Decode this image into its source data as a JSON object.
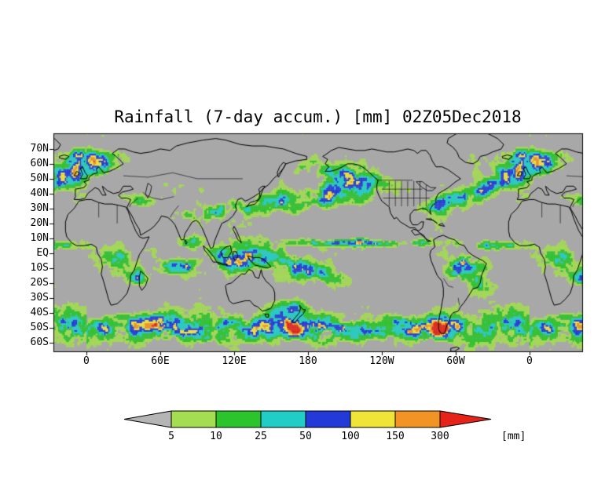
{
  "chart_data": {
    "type": "heatmap",
    "title": "Rainfall (7-day accum.) [mm] 02Z05Dec2018",
    "variable": "7-day accumulated rainfall",
    "valid_time": "02Z05Dec2018",
    "projection": "latlon-global-wrapped",
    "lon_range": [
      -26.8,
      402.8
    ],
    "lat_range": [
      -66,
      80.5
    ],
    "x_ticks": [
      {
        "lon": 0,
        "label": "0"
      },
      {
        "lon": 60,
        "label": "60E"
      },
      {
        "lon": 120,
        "label": "120E"
      },
      {
        "lon": 180,
        "label": "180"
      },
      {
        "lon": 240,
        "label": "120W"
      },
      {
        "lon": 300,
        "label": "60W"
      },
      {
        "lon": 360,
        "label": "0"
      }
    ],
    "y_ticks": [
      {
        "lat": 70,
        "label": "70N"
      },
      {
        "lat": 60,
        "label": "60N"
      },
      {
        "lat": 50,
        "label": "50N"
      },
      {
        "lat": 40,
        "label": "40N"
      },
      {
        "lat": 30,
        "label": "30N"
      },
      {
        "lat": 20,
        "label": "20N"
      },
      {
        "lat": 10,
        "label": "10N"
      },
      {
        "lat": 0,
        "label": "EQ"
      },
      {
        "lat": -10,
        "label": "10S"
      },
      {
        "lat": -20,
        "label": "20S"
      },
      {
        "lat": -30,
        "label": "30S"
      },
      {
        "lat": -40,
        "label": "40S"
      },
      {
        "lat": -50,
        "label": "50S"
      },
      {
        "lat": -60,
        "label": "60S"
      }
    ],
    "colorbar": {
      "unit": "[mm]",
      "levels": [
        5,
        10,
        25,
        50,
        100,
        150,
        300
      ],
      "under_color": "#b5b5b5",
      "segment_colors": [
        "#a4dc52",
        "#2cc42c",
        "#21cdc6",
        "#2339d8",
        "#f1e438",
        "#f29325"
      ],
      "over_color": "#e52318"
    },
    "map_colors": {
      "background": "#a8a8a8",
      "coastline": "#000000",
      "page": "#ffffff"
    },
    "render": {
      "cell_deg": [
        1.1,
        1.15
      ],
      "value_scale": 1.6,
      "base_weight": 0.25,
      "thresholds": [
        0.3,
        0.42,
        0.58,
        0.72,
        0.85,
        0.95,
        1.08
      ],
      "noise_octaves": [
        [
          13,
          9,
          0.5
        ],
        [
          5.5,
          4,
          0.3
        ],
        [
          2.2,
          2,
          0.2
        ]
      ],
      "wet_systems": [
        [
          -51,
          8,
          180,
          400,
          0.55,
          0
        ],
        [
          -46,
          7,
          70,
          45,
          0.3,
          0
        ],
        [
          -50,
          6,
          182,
          22,
          0.38,
          0
        ],
        [
          -49,
          7,
          283,
          16,
          0.4,
          0
        ],
        [
          -43,
          6,
          345,
          22,
          0.28,
          0
        ],
        [
          7,
          2.3,
          225,
          52,
          0.78,
          0
        ],
        [
          5,
          2.6,
          335,
          22,
          0.45,
          0
        ],
        [
          -4,
          9,
          124,
          22,
          0.7,
          0
        ],
        [
          -10,
          6,
          175,
          33,
          0.58,
          -0.25
        ],
        [
          37,
          7,
          182,
          48,
          0.58,
          0.12
        ],
        [
          52,
          7,
          218,
          18,
          0.55,
          0
        ],
        [
          28,
          5,
          103,
          24,
          0.45,
          0.15
        ],
        [
          40,
          7,
          312,
          26,
          0.52,
          0.3
        ],
        [
          54,
          8,
          352,
          22,
          0.5,
          0
        ],
        [
          60,
          6,
          14,
          12,
          0.42,
          0
        ],
        [
          -9,
          8,
          305,
          13,
          0.72,
          0
        ],
        [
          -20,
          6,
          322,
          14,
          0.45,
          -0.3
        ],
        [
          -6,
          7,
          22,
          12,
          0.6,
          0
        ],
        [
          -16,
          6,
          41,
          10,
          0.42,
          0
        ],
        [
          -9,
          5,
          75,
          18,
          0.5,
          0
        ],
        [
          7,
          4,
          85,
          10,
          0.42,
          0
        ],
        [
          34,
          4,
          45,
          12,
          0.28,
          0
        ],
        [
          34,
          6,
          286,
          11,
          0.42,
          0.2
        ],
        [
          66,
          6,
          355,
          20,
          0.38,
          0
        ],
        [
          57,
          5,
          185,
          15,
          0.33,
          0
        ],
        [
          -38,
          6,
          163,
          14,
          0.42,
          0
        ]
      ],
      "dry_systems": [
        [
          -22,
          10,
          255,
          33,
          -0.45,
          0
        ],
        [
          -20,
          8,
          350,
          18,
          -0.3,
          0
        ],
        [
          23,
          8,
          25,
          30,
          -0.5,
          0
        ],
        [
          -25,
          6,
          132,
          11,
          -0.4,
          0
        ],
        [
          28,
          7,
          250,
          14,
          -0.38,
          0
        ],
        [
          19,
          6,
          200,
          28,
          -0.3,
          0
        ],
        [
          63,
          10,
          100,
          38,
          -0.25,
          0
        ],
        [
          -26,
          5,
          20,
          9,
          -0.28,
          0
        ],
        [
          72,
          8,
          260,
          40,
          -0.3,
          0
        ]
      ]
    }
  }
}
